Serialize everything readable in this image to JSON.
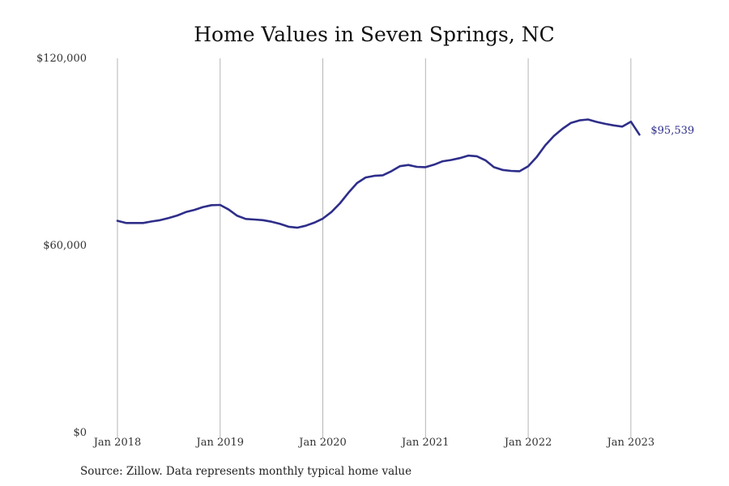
{
  "chart_data": {
    "type": "line",
    "title": "Home Values in Seven Springs, NC",
    "xlabel": "",
    "ylabel": "",
    "source": "Source: Zillow. Data represents monthly typical home value",
    "x_ticks": [
      {
        "date": "2018-01",
        "label": "Jan 2018"
      },
      {
        "date": "2019-01",
        "label": "Jan 2019"
      },
      {
        "date": "2020-01",
        "label": "Jan 2020"
      },
      {
        "date": "2021-01",
        "label": "Jan 2021"
      },
      {
        "date": "2022-01",
        "label": "Jan 2022"
      },
      {
        "date": "2023-01",
        "label": "Jan 2023"
      }
    ],
    "y_ticks": [
      {
        "value": 0,
        "label": "$0"
      },
      {
        "value": 60000,
        "label": "$60,000"
      },
      {
        "value": 120000,
        "label": "$120,000"
      }
    ],
    "xlim": [
      "2018-01",
      "2023-03"
    ],
    "ylim": [
      0,
      120000
    ],
    "grid": "vertical",
    "line_color": "#2e2e8a",
    "end_label": "$95,539",
    "series": [
      {
        "x": [
          "2018-01",
          "2018-02",
          "2018-03",
          "2018-04",
          "2018-05",
          "2018-06",
          "2018-07",
          "2018-08",
          "2018-09",
          "2018-10",
          "2018-11",
          "2018-12",
          "2019-01",
          "2019-02",
          "2019-03",
          "2019-04",
          "2019-05",
          "2019-06",
          "2019-07",
          "2019-08",
          "2019-09",
          "2019-10",
          "2019-11",
          "2019-12",
          "2020-01",
          "2020-02",
          "2020-03",
          "2020-04",
          "2020-05",
          "2020-06",
          "2020-07",
          "2020-08",
          "2020-09",
          "2020-10",
          "2020-11",
          "2020-12",
          "2021-01",
          "2021-02",
          "2021-03",
          "2021-04",
          "2021-05",
          "2021-06",
          "2021-07",
          "2021-08",
          "2021-09",
          "2021-10",
          "2021-11",
          "2021-12",
          "2022-01",
          "2022-02",
          "2022-03",
          "2022-04",
          "2022-05",
          "2022-06",
          "2022-07",
          "2022-08",
          "2022-09",
          "2022-10",
          "2022-11",
          "2022-12",
          "2023-01",
          "2023-02"
        ],
        "values": [
          67900,
          67200,
          67200,
          67200,
          67700,
          68100,
          68800,
          69600,
          70700,
          71400,
          72300,
          72900,
          73000,
          71500,
          69500,
          68500,
          68300,
          68100,
          67600,
          66900,
          66000,
          65700,
          66300,
          67300,
          68600,
          70700,
          73500,
          76900,
          80000,
          81800,
          82300,
          82500,
          83800,
          85400,
          85800,
          85200,
          85100,
          85900,
          87000,
          87400,
          88000,
          88800,
          88600,
          87300,
          85100,
          84200,
          83900,
          83800,
          85400,
          88400,
          92100,
          95100,
          97400,
          99300,
          100100,
          100400,
          99600,
          99000,
          98500,
          98100,
          99700,
          95539
        ]
      }
    ]
  }
}
